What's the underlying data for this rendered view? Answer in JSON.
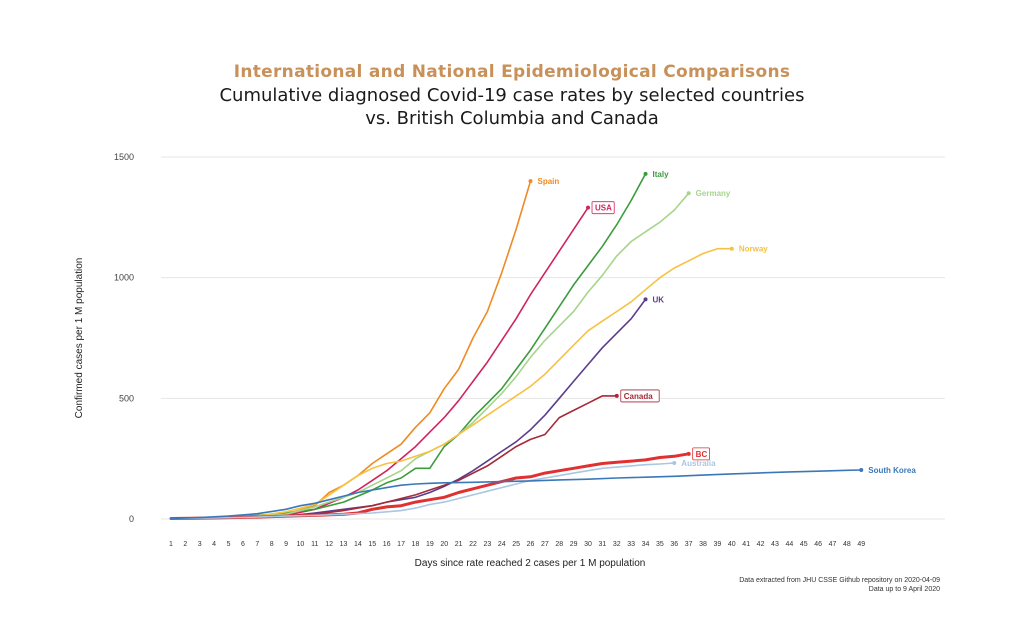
{
  "header": {
    "title": "International and National Epidemiological Comparisons",
    "subtitle_line1": "Cumulative diagnosed Covid-19 case rates by selected countries",
    "subtitle_line2": "vs. British Columbia and Canada"
  },
  "footnote": {
    "line1": "Data extracted from JHU CSSE Github repository on 2020-04-09",
    "line2": "Data up to 9 April 2020"
  },
  "chart_data": {
    "type": "line",
    "title": "Cumulative diagnosed Covid-19 case rates by selected countries vs. British Columbia and Canada",
    "xlabel": "Days since rate reached 2 cases per 1 M population",
    "ylabel": "Confirmed cases per 1 M population",
    "xlim": [
      1,
      49
    ],
    "ylim": [
      0,
      1500
    ],
    "x_ticks": [
      1,
      2,
      3,
      4,
      5,
      6,
      7,
      8,
      9,
      10,
      11,
      12,
      13,
      14,
      15,
      16,
      17,
      18,
      19,
      20,
      21,
      22,
      23,
      24,
      25,
      26,
      27,
      28,
      29,
      30,
      31,
      32,
      33,
      34,
      35,
      36,
      37,
      38,
      39,
      40,
      41,
      42,
      43,
      44,
      45,
      46,
      47,
      48,
      49
    ],
    "y_ticks": [
      0,
      500,
      1000,
      1500
    ],
    "grid": "horizontal",
    "series": [
      {
        "name": "Spain",
        "label": "Spain",
        "color": "#f08a24",
        "boxed": false,
        "points": [
          [
            1,
            2
          ],
          [
            3,
            4
          ],
          [
            5,
            8
          ],
          [
            7,
            12
          ],
          [
            9,
            20
          ],
          [
            11,
            55
          ],
          [
            12,
            110
          ],
          [
            13,
            140
          ],
          [
            14,
            180
          ],
          [
            15,
            230
          ],
          [
            16,
            270
          ],
          [
            17,
            310
          ],
          [
            18,
            380
          ],
          [
            19,
            440
          ],
          [
            20,
            540
          ],
          [
            21,
            620
          ],
          [
            22,
            750
          ],
          [
            23,
            860
          ],
          [
            24,
            1020
          ],
          [
            25,
            1200
          ],
          [
            26,
            1400
          ]
        ]
      },
      {
        "name": "USA",
        "label": "USA",
        "color": "#d0245f",
        "boxed": true,
        "points": [
          [
            1,
            2
          ],
          [
            4,
            4
          ],
          [
            7,
            8
          ],
          [
            9,
            15
          ],
          [
            11,
            40
          ],
          [
            13,
            90
          ],
          [
            14,
            120
          ],
          [
            15,
            160
          ],
          [
            16,
            200
          ],
          [
            17,
            250
          ],
          [
            18,
            300
          ],
          [
            19,
            360
          ],
          [
            20,
            420
          ],
          [
            21,
            490
          ],
          [
            22,
            570
          ],
          [
            23,
            650
          ],
          [
            24,
            740
          ],
          [
            25,
            830
          ],
          [
            26,
            930
          ],
          [
            27,
            1020
          ],
          [
            28,
            1110
          ],
          [
            29,
            1200
          ],
          [
            30,
            1290
          ]
        ]
      },
      {
        "name": "Italy",
        "label": "Italy",
        "color": "#3b9c3a",
        "boxed": false,
        "points": [
          [
            1,
            2
          ],
          [
            4,
            6
          ],
          [
            7,
            15
          ],
          [
            9,
            25
          ],
          [
            11,
            40
          ],
          [
            13,
            70
          ],
          [
            14,
            95
          ],
          [
            15,
            120
          ],
          [
            16,
            150
          ],
          [
            17,
            170
          ],
          [
            18,
            210
          ],
          [
            19,
            210
          ],
          [
            20,
            300
          ],
          [
            21,
            350
          ],
          [
            22,
            420
          ],
          [
            23,
            480
          ],
          [
            24,
            540
          ],
          [
            25,
            620
          ],
          [
            26,
            700
          ],
          [
            27,
            790
          ],
          [
            28,
            880
          ],
          [
            29,
            970
          ],
          [
            30,
            1050
          ],
          [
            31,
            1130
          ],
          [
            32,
            1220
          ],
          [
            33,
            1320
          ],
          [
            34,
            1430
          ]
        ]
      },
      {
        "name": "Germany",
        "label": "Germany",
        "color": "#a6d58a",
        "boxed": false,
        "points": [
          [
            1,
            2
          ],
          [
            4,
            5
          ],
          [
            7,
            10
          ],
          [
            9,
            20
          ],
          [
            11,
            50
          ],
          [
            13,
            90
          ],
          [
            14,
            110
          ],
          [
            15,
            140
          ],
          [
            16,
            170
          ],
          [
            17,
            200
          ],
          [
            18,
            250
          ],
          [
            19,
            280
          ],
          [
            20,
            310
          ],
          [
            21,
            350
          ],
          [
            22,
            400
          ],
          [
            23,
            460
          ],
          [
            24,
            520
          ],
          [
            25,
            590
          ],
          [
            26,
            670
          ],
          [
            27,
            740
          ],
          [
            28,
            800
          ],
          [
            29,
            860
          ],
          [
            30,
            940
          ],
          [
            31,
            1010
          ],
          [
            32,
            1090
          ],
          [
            33,
            1150
          ],
          [
            34,
            1190
          ],
          [
            35,
            1230
          ],
          [
            36,
            1280
          ],
          [
            37,
            1350
          ]
        ]
      },
      {
        "name": "Norway",
        "label": "Norway",
        "color": "#f5c242",
        "boxed": false,
        "points": [
          [
            1,
            2
          ],
          [
            4,
            6
          ],
          [
            7,
            12
          ],
          [
            9,
            30
          ],
          [
            11,
            60
          ],
          [
            12,
            100
          ],
          [
            13,
            140
          ],
          [
            14,
            180
          ],
          [
            15,
            210
          ],
          [
            16,
            230
          ],
          [
            17,
            240
          ],
          [
            18,
            260
          ],
          [
            19,
            280
          ],
          [
            20,
            310
          ],
          [
            21,
            350
          ],
          [
            22,
            390
          ],
          [
            23,
            430
          ],
          [
            24,
            470
          ],
          [
            25,
            510
          ],
          [
            26,
            550
          ],
          [
            27,
            600
          ],
          [
            28,
            660
          ],
          [
            29,
            720
          ],
          [
            30,
            780
          ],
          [
            31,
            820
          ],
          [
            32,
            860
          ],
          [
            33,
            900
          ],
          [
            34,
            950
          ],
          [
            35,
            1000
          ],
          [
            36,
            1040
          ],
          [
            37,
            1070
          ],
          [
            38,
            1100
          ],
          [
            39,
            1120
          ],
          [
            40,
            1120
          ]
        ]
      },
      {
        "name": "UK",
        "label": "UK",
        "color": "#5b3d8e",
        "boxed": false,
        "points": [
          [
            1,
            2
          ],
          [
            4,
            4
          ],
          [
            7,
            8
          ],
          [
            9,
            12
          ],
          [
            11,
            25
          ],
          [
            13,
            40
          ],
          [
            15,
            55
          ],
          [
            16,
            70
          ],
          [
            17,
            80
          ],
          [
            18,
            90
          ],
          [
            19,
            110
          ],
          [
            20,
            135
          ],
          [
            21,
            165
          ],
          [
            22,
            200
          ],
          [
            23,
            240
          ],
          [
            24,
            280
          ],
          [
            25,
            320
          ],
          [
            26,
            370
          ],
          [
            27,
            430
          ],
          [
            28,
            500
          ],
          [
            29,
            570
          ],
          [
            30,
            640
          ],
          [
            31,
            710
          ],
          [
            32,
            770
          ],
          [
            33,
            830
          ],
          [
            34,
            910
          ]
        ]
      },
      {
        "name": "Canada",
        "label": "Canada",
        "color": "#a52a3a",
        "boxed": true,
        "points": [
          [
            1,
            2
          ],
          [
            4,
            4
          ],
          [
            7,
            8
          ],
          [
            9,
            12
          ],
          [
            11,
            20
          ],
          [
            13,
            35
          ],
          [
            14,
            45
          ],
          [
            15,
            55
          ],
          [
            16,
            70
          ],
          [
            17,
            85
          ],
          [
            18,
            100
          ],
          [
            19,
            120
          ],
          [
            20,
            140
          ],
          [
            21,
            160
          ],
          [
            22,
            190
          ],
          [
            23,
            220
          ],
          [
            24,
            260
          ],
          [
            25,
            300
          ],
          [
            26,
            330
          ],
          [
            27,
            350
          ],
          [
            28,
            420
          ],
          [
            29,
            450
          ],
          [
            30,
            480
          ],
          [
            31,
            510
          ],
          [
            32,
            510
          ]
        ]
      },
      {
        "name": "BC",
        "label": "BC",
        "color": "#e03030",
        "boxed": true,
        "thick": true,
        "points": [
          [
            1,
            2
          ],
          [
            4,
            4
          ],
          [
            7,
            8
          ],
          [
            9,
            12
          ],
          [
            11,
            15
          ],
          [
            13,
            20
          ],
          [
            14,
            25
          ],
          [
            15,
            40
          ],
          [
            16,
            50
          ],
          [
            17,
            55
          ],
          [
            18,
            70
          ],
          [
            19,
            80
          ],
          [
            20,
            90
          ],
          [
            21,
            110
          ],
          [
            22,
            125
          ],
          [
            23,
            140
          ],
          [
            24,
            155
          ],
          [
            25,
            170
          ],
          [
            26,
            175
          ],
          [
            27,
            190
          ],
          [
            28,
            200
          ],
          [
            29,
            210
          ],
          [
            30,
            220
          ],
          [
            31,
            230
          ],
          [
            32,
            235
          ],
          [
            33,
            240
          ],
          [
            34,
            245
          ],
          [
            35,
            255
          ],
          [
            36,
            260
          ],
          [
            37,
            270
          ]
        ]
      },
      {
        "name": "Australia",
        "label": "Australia",
        "color": "#a9c6e4",
        "boxed": false,
        "points": [
          [
            1,
            2
          ],
          [
            4,
            4
          ],
          [
            7,
            8
          ],
          [
            9,
            12
          ],
          [
            11,
            15
          ],
          [
            13,
            20
          ],
          [
            15,
            25
          ],
          [
            17,
            35
          ],
          [
            18,
            45
          ],
          [
            19,
            60
          ],
          [
            20,
            70
          ],
          [
            21,
            85
          ],
          [
            22,
            100
          ],
          [
            23,
            115
          ],
          [
            24,
            130
          ],
          [
            25,
            145
          ],
          [
            26,
            160
          ],
          [
            27,
            170
          ],
          [
            28,
            180
          ],
          [
            29,
            190
          ],
          [
            30,
            200
          ],
          [
            31,
            210
          ],
          [
            32,
            215
          ],
          [
            33,
            220
          ],
          [
            34,
            225
          ],
          [
            35,
            228
          ],
          [
            36,
            232
          ]
        ]
      },
      {
        "name": "South Korea",
        "label": "South Korea",
        "color": "#3a78b8",
        "boxed": false,
        "points": [
          [
            1,
            2
          ],
          [
            3,
            6
          ],
          [
            5,
            12
          ],
          [
            7,
            22
          ],
          [
            9,
            40
          ],
          [
            10,
            55
          ],
          [
            11,
            65
          ],
          [
            12,
            80
          ],
          [
            13,
            95
          ],
          [
            14,
            110
          ],
          [
            15,
            120
          ],
          [
            16,
            130
          ],
          [
            17,
            140
          ],
          [
            18,
            145
          ],
          [
            19,
            148
          ],
          [
            20,
            150
          ],
          [
            22,
            152
          ],
          [
            24,
            155
          ],
          [
            26,
            158
          ],
          [
            28,
            162
          ],
          [
            30,
            165
          ],
          [
            32,
            170
          ],
          [
            34,
            173
          ],
          [
            36,
            177
          ],
          [
            38,
            182
          ],
          [
            40,
            187
          ],
          [
            42,
            191
          ],
          [
            44,
            195
          ],
          [
            46,
            198
          ],
          [
            48,
            202
          ],
          [
            49,
            203
          ]
        ]
      }
    ]
  }
}
